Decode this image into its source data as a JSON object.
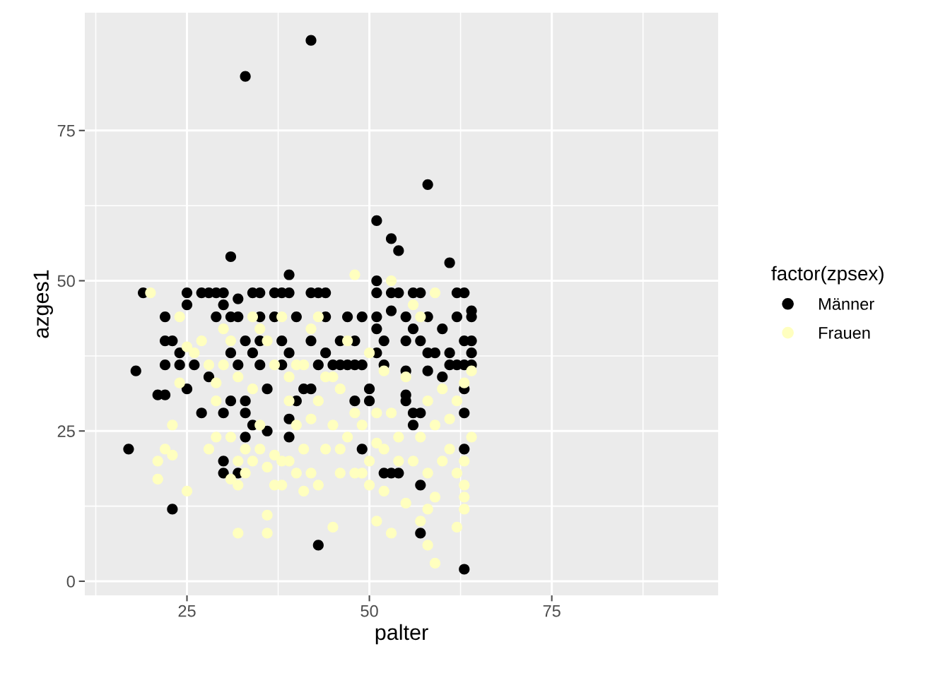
{
  "chart_data": {
    "type": "scatter",
    "xlabel": "palter",
    "ylabel": "azges1",
    "legend_title": "factor(zpsex)",
    "xlim": [
      11,
      97.8
    ],
    "ylim": [
      -2.35,
      94.6
    ],
    "xticks": [
      25,
      50,
      75
    ],
    "yticks": [
      0,
      25,
      50,
      75
    ],
    "grid": true,
    "legend": "right",
    "marker": "circle",
    "series": [
      {
        "name": "Männer",
        "color": "#000000",
        "x": [
          42,
          33,
          58,
          51,
          53,
          54,
          61,
          31,
          39,
          51,
          17,
          23,
          43,
          63,
          57,
          57,
          18,
          19,
          21,
          22,
          22,
          22,
          22,
          23,
          24,
          24,
          25,
          25,
          25,
          26,
          27,
          27,
          28,
          28,
          29,
          29,
          30,
          30,
          30,
          30,
          30,
          31,
          31,
          31,
          32,
          32,
          32,
          32,
          33,
          33,
          33,
          33,
          34,
          34,
          34,
          35,
          35,
          35,
          35,
          36,
          36,
          37,
          37,
          38,
          38,
          38,
          39,
          39,
          39,
          39,
          40,
          40,
          41,
          42,
          42,
          42,
          43,
          43,
          44,
          44,
          44,
          45,
          46,
          46,
          47,
          47,
          48,
          48,
          48,
          49,
          49,
          49,
          50,
          50,
          51,
          51,
          51,
          51,
          52,
          52,
          52,
          53,
          53,
          53,
          54,
          54,
          55,
          55,
          55,
          55,
          55,
          56,
          56,
          56,
          56,
          57,
          57,
          57,
          58,
          58,
          58,
          59,
          60,
          60,
          61,
          61,
          62,
          62,
          62,
          63,
          63,
          63,
          63,
          63,
          63,
          64,
          64,
          64,
          64,
          64
        ],
        "values": [
          90,
          84,
          66,
          60,
          57,
          55,
          53,
          54,
          51,
          50,
          22,
          12,
          6,
          2,
          8,
          16,
          35,
          48,
          31,
          31,
          36,
          40,
          44,
          40,
          36,
          38,
          48,
          46,
          32,
          36,
          28,
          48,
          48,
          34,
          44,
          48,
          48,
          46,
          20,
          18,
          28,
          44,
          30,
          38,
          47,
          44,
          36,
          18,
          40,
          30,
          28,
          24,
          48,
          38,
          26,
          48,
          44,
          40,
          36,
          32,
          25,
          48,
          44,
          48,
          40,
          36,
          48,
          38,
          24,
          27,
          44,
          30,
          32,
          48,
          40,
          32,
          48,
          36,
          48,
          44,
          38,
          36,
          40,
          36,
          44,
          36,
          40,
          36,
          30,
          22,
          44,
          36,
          30,
          32,
          48,
          44,
          42,
          38,
          40,
          36,
          18,
          18,
          48,
          45,
          18,
          48,
          40,
          44,
          35,
          31,
          30,
          48,
          42,
          28,
          26,
          48,
          28,
          40,
          38,
          35,
          44,
          38,
          34,
          42,
          36,
          38,
          48,
          36,
          44,
          48,
          40,
          36,
          32,
          28,
          22,
          45,
          44,
          40,
          38,
          36
        ]
      },
      {
        "name": "Frauen",
        "color": "#ffffbf",
        "x": [
          20,
          21,
          21,
          22,
          23,
          23,
          24,
          24,
          25,
          25,
          26,
          27,
          28,
          28,
          29,
          29,
          29,
          30,
          30,
          31,
          31,
          31,
          32,
          32,
          32,
          32,
          33,
          33,
          34,
          34,
          34,
          35,
          35,
          35,
          36,
          36,
          36,
          36,
          37,
          37,
          37,
          38,
          38,
          38,
          39,
          39,
          39,
          40,
          40,
          40,
          41,
          41,
          41,
          42,
          42,
          42,
          43,
          43,
          43,
          44,
          44,
          45,
          45,
          45,
          46,
          46,
          46,
          47,
          47,
          48,
          48,
          48,
          49,
          49,
          50,
          50,
          50,
          51,
          51,
          51,
          52,
          52,
          52,
          53,
          53,
          53,
          54,
          54,
          55,
          55,
          56,
          56,
          57,
          57,
          57,
          58,
          58,
          58,
          58,
          59,
          59,
          59,
          59,
          60,
          60,
          61,
          61,
          62,
          62,
          62,
          63,
          63,
          63,
          63,
          63,
          64,
          64
        ],
        "values": [
          48,
          20,
          17,
          22,
          21,
          26,
          44,
          33,
          15,
          39,
          38,
          40,
          22,
          36,
          24,
          30,
          33,
          42,
          36,
          17,
          24,
          40,
          8,
          16,
          20,
          34,
          18,
          22,
          20,
          32,
          44,
          22,
          26,
          42,
          8,
          11,
          19,
          40,
          16,
          21,
          36,
          16,
          20,
          44,
          20,
          30,
          34,
          18,
          26,
          36,
          15,
          22,
          36,
          18,
          27,
          42,
          16,
          30,
          44,
          22,
          34,
          9,
          26,
          34,
          18,
          22,
          32,
          24,
          40,
          18,
          28,
          51,
          26,
          18,
          16,
          20,
          38,
          10,
          23,
          28,
          15,
          22,
          35,
          8,
          28,
          50,
          20,
          24,
          13,
          34,
          20,
          46,
          10,
          24,
          44,
          6,
          12,
          18,
          30,
          3,
          14,
          26,
          48,
          20,
          32,
          22,
          27,
          9,
          18,
          30,
          12,
          14,
          16,
          20,
          33,
          24,
          35
        ]
      }
    ]
  }
}
